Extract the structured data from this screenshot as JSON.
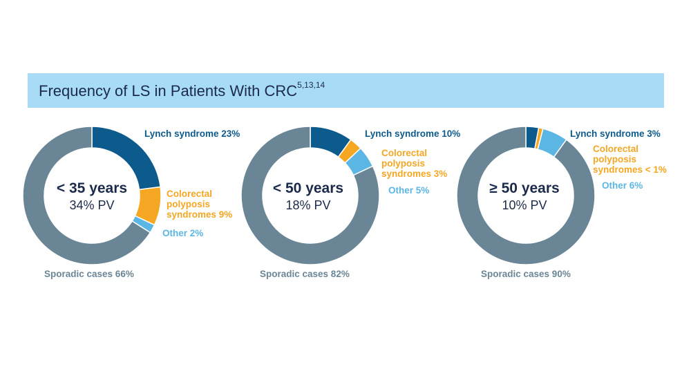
{
  "banner": {
    "title": "Frequency of LS in Patients With CRC",
    "superscript": "5,13,14"
  },
  "colors": {
    "lynch": "#0d5a8c",
    "polyposis": "#f5a623",
    "other": "#5cb6e4",
    "sporadic": "#6a8595",
    "banner_bg": "#a8dcf6",
    "title_text": "#1b2a4a"
  },
  "chart_data": [
    {
      "type": "pie",
      "center_title": "< 35 years",
      "center_subtitle": "34% PV",
      "slices": [
        {
          "label": "Lynch syndrome 23%",
          "value": 23
        },
        {
          "label": "Colorectal polyposis syndromes 9%",
          "value": 9
        },
        {
          "label": "Other 2%",
          "value": 2
        },
        {
          "label": "Sporadic cases 66%",
          "value": 66
        }
      ]
    },
    {
      "type": "pie",
      "center_title": "< 50 years",
      "center_subtitle": "18% PV",
      "slices": [
        {
          "label": "Lynch syndrome 10%",
          "value": 10
        },
        {
          "label": "Colorectal polyposis syndromes 3%",
          "value": 3
        },
        {
          "label": "Other 5%",
          "value": 5
        },
        {
          "label": "Sporadic cases 82%",
          "value": 82
        }
      ]
    },
    {
      "type": "pie",
      "center_title": "≥ 50 years",
      "center_subtitle": "10% PV",
      "slices": [
        {
          "label": "Lynch syndrome 3%",
          "value": 3
        },
        {
          "label": "Colorectal polyposis syndromes < 1%",
          "value": 1
        },
        {
          "label": "Other 6%",
          "value": 6
        },
        {
          "label": "Sporadic cases 90%",
          "value": 90
        }
      ]
    }
  ]
}
